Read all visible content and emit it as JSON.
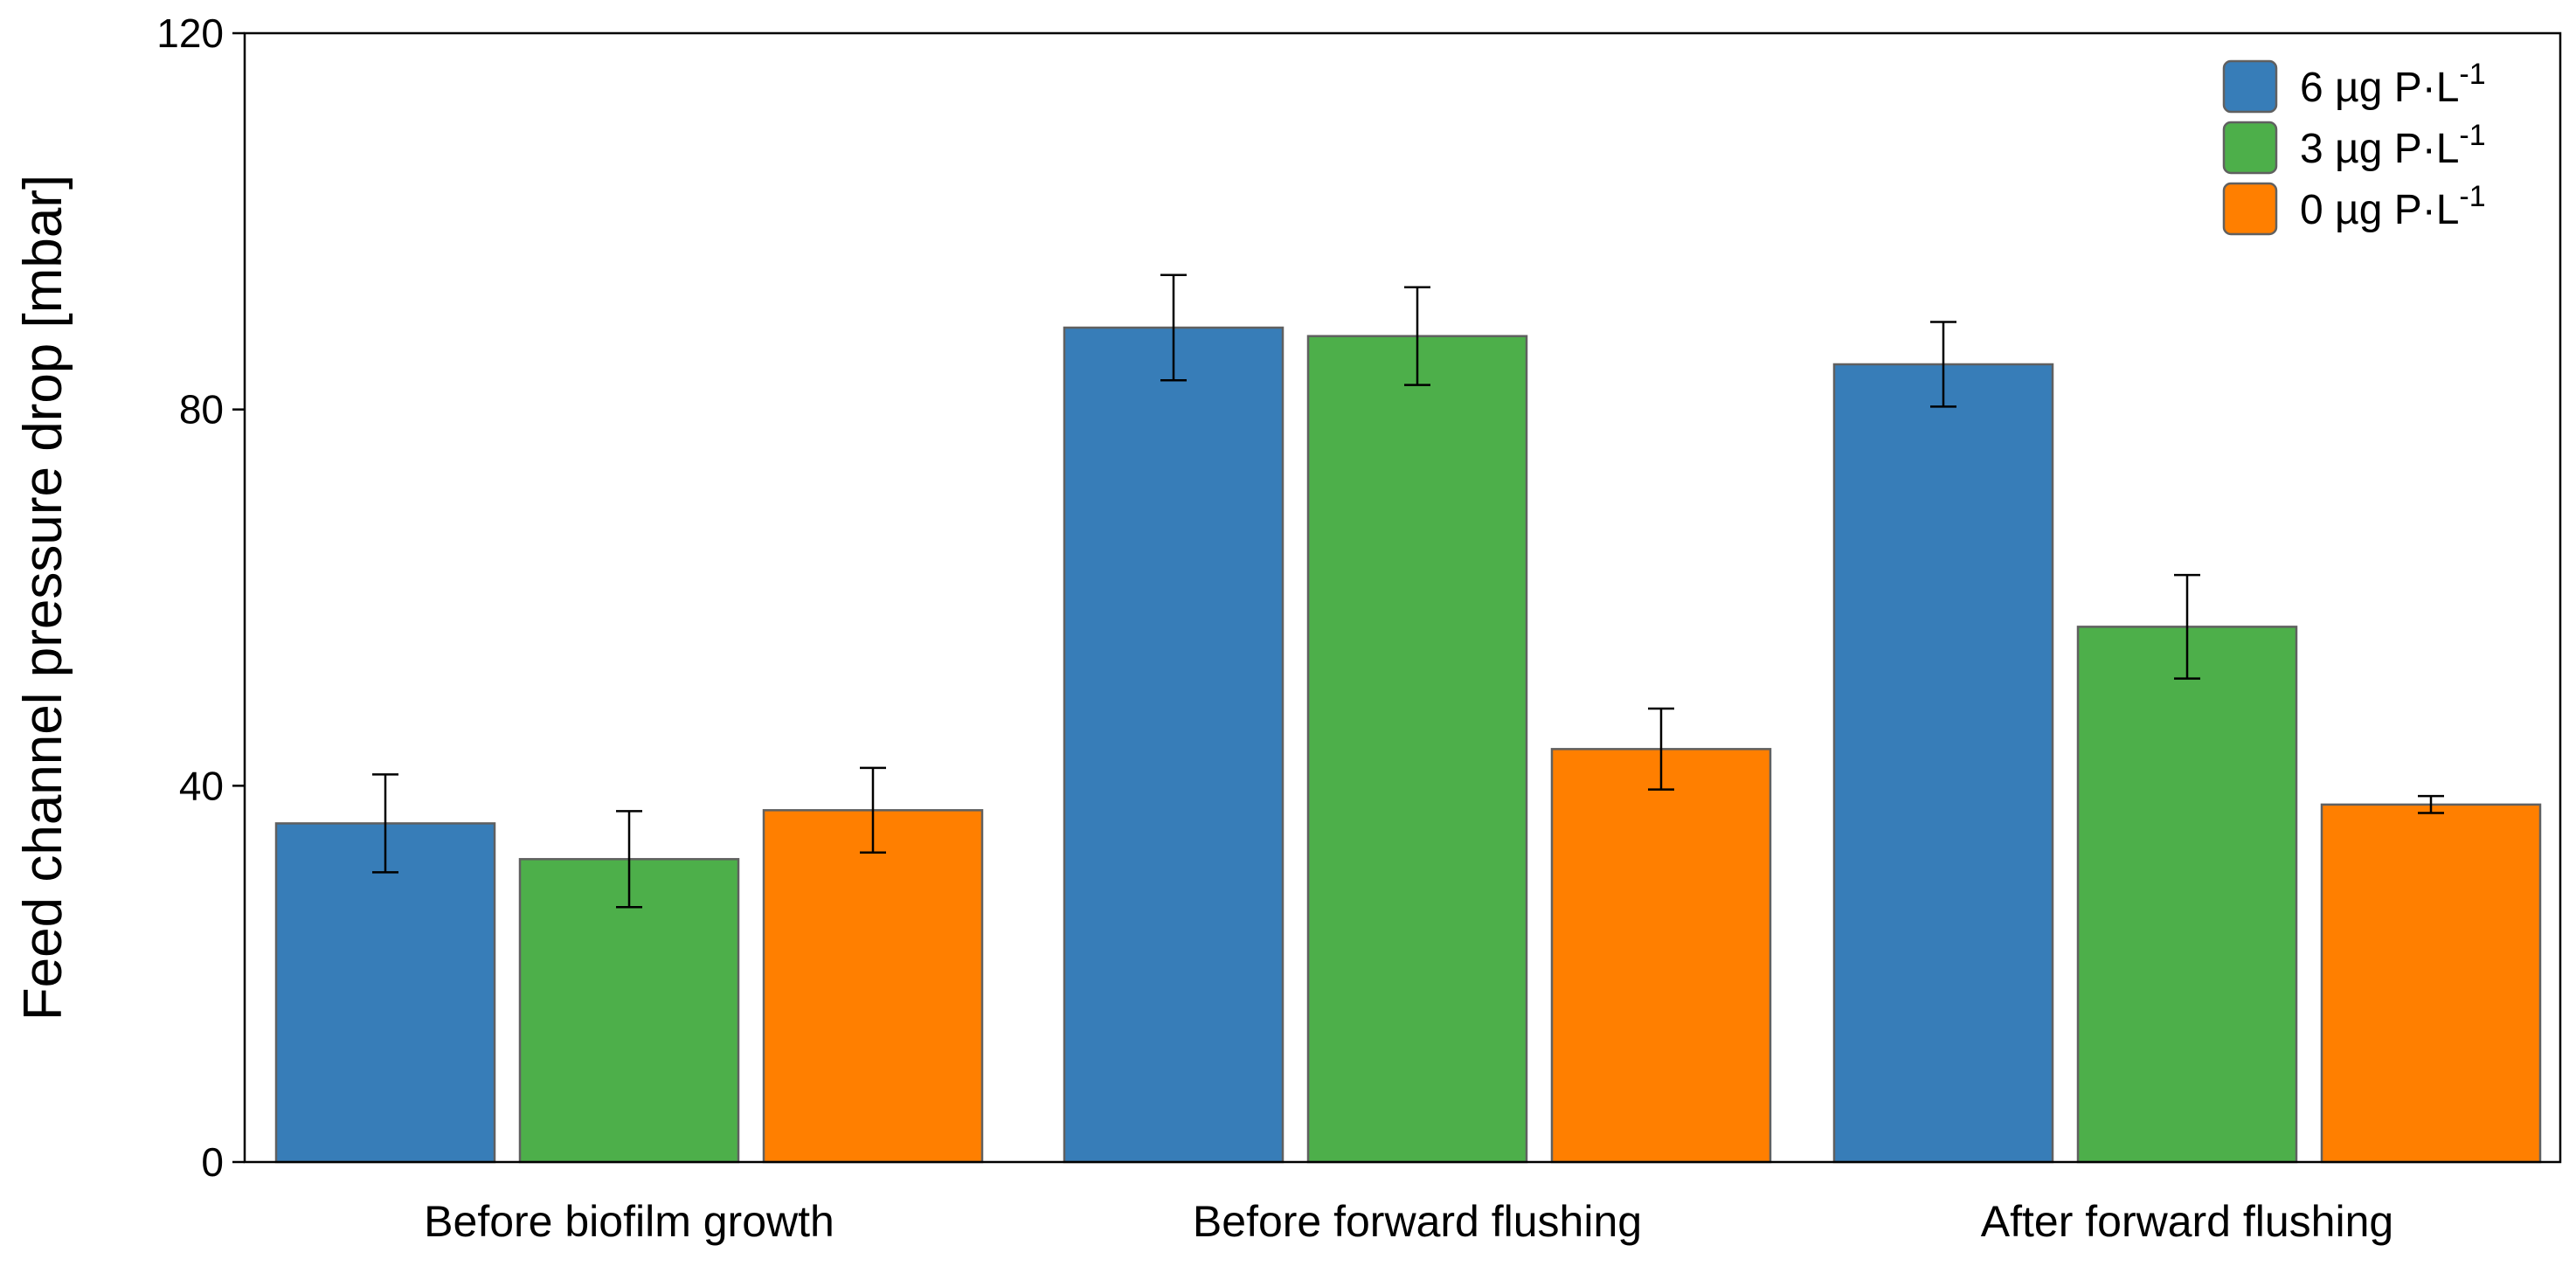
{
  "chart_data": {
    "type": "bar",
    "title": "",
    "xlabel": "",
    "ylabel": "Feed channel pressure drop [mbar]",
    "ylim": [
      0,
      120
    ],
    "yticks": [
      0,
      40,
      80,
      120
    ],
    "categories": [
      "Before biofilm growth",
      "Before forward flushing",
      "After forward flushing"
    ],
    "series": [
      {
        "name": "6 µg P·L",
        "superscript": "-1",
        "color": "#377db8",
        "values": [
          36,
          88.7,
          84.8
        ],
        "errors": [
          5.2,
          5.6,
          4.5
        ]
      },
      {
        "name": "3 µg P·L",
        "superscript": "-1",
        "color": "#4daf4a",
        "values": [
          32.2,
          87.8,
          56.9
        ],
        "errors": [
          5.1,
          5.2,
          5.5
        ]
      },
      {
        "name": "0 µg P·L",
        "superscript": "-1",
        "color": "#ff7f00",
        "values": [
          37.4,
          43.9,
          38
        ],
        "errors": [
          4.5,
          4.3,
          0.9
        ]
      }
    ],
    "legend_position": "top-right",
    "grid": false
  }
}
